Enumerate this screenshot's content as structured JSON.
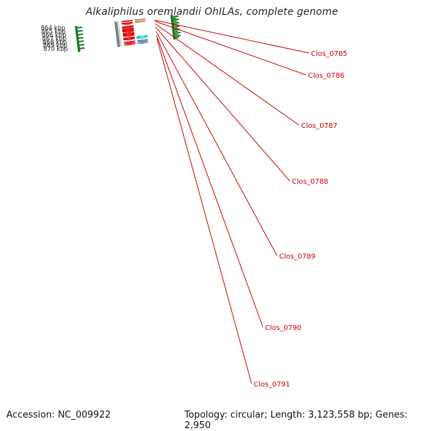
{
  "title": "Alkaliphilus oremlandii OhILAs, complete genome",
  "accession": "Accession: NC_009922",
  "topology": "Topology: circular; Length: 3,123,558 bp; Genes: 2,950",
  "ticks": [
    {
      "label": "864 kbp"
    },
    {
      "label": "865 kbp"
    },
    {
      "label": "866 kbp"
    },
    {
      "label": "867 kbp"
    },
    {
      "label": "868 kbp"
    },
    {
      "label": "869 kbp"
    },
    {
      "label": "870 kbp"
    }
  ],
  "genes": [
    {
      "label": "Clos_0785",
      "color": "#cc0000"
    },
    {
      "label": "Clos_0786",
      "color": "#cc0000"
    },
    {
      "label": "Clos_0787",
      "color": "#cc0000"
    },
    {
      "label": "Clos_0788",
      "color": "#cc0000"
    },
    {
      "label": "Clos_0789",
      "color": "#cc0000"
    },
    {
      "label": "Clos_0790",
      "color": "#cc0000"
    },
    {
      "label": "Clos_0791",
      "color": "#cc0000"
    }
  ],
  "colors": {
    "cds": "#ff0000",
    "orange_feature": "#ff9900",
    "cyan_feature": "#00ffff",
    "blue_feature": "#4a86b8",
    "backbone": "#808080",
    "tick_marks": "#1a7a1a"
  }
}
